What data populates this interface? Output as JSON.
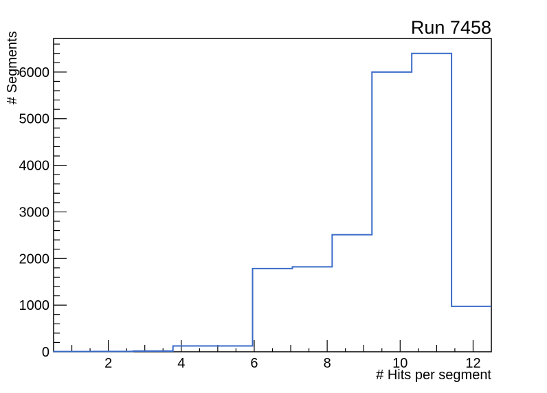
{
  "chart_data": {
    "type": "step-histogram",
    "title": "Run 7458",
    "xlabel": "# Hits per segment",
    "ylabel": "# Segments",
    "xlim": [
      0.5,
      12.5
    ],
    "ylim": [
      0,
      6720
    ],
    "bin_edges": [
      0.5,
      1.5909,
      2.6818,
      3.7727,
      4.8636,
      5.9545,
      7.0455,
      8.1364,
      9.2273,
      10.3182,
      11.4091,
      12.5
    ],
    "counts": [
      5,
      8,
      15,
      125,
      125,
      1785,
      1822,
      2510,
      6000,
      6400,
      975
    ],
    "x_major_ticks": [
      2,
      4,
      6,
      8,
      10,
      12
    ],
    "x_minor_step": 0.5,
    "y_major_step": 1000,
    "y_minor_step": 200,
    "grid": false,
    "legend_position": "none",
    "line_color": "#3a6bc8",
    "axis_color": "#000000",
    "background_color": "#ffffff"
  }
}
